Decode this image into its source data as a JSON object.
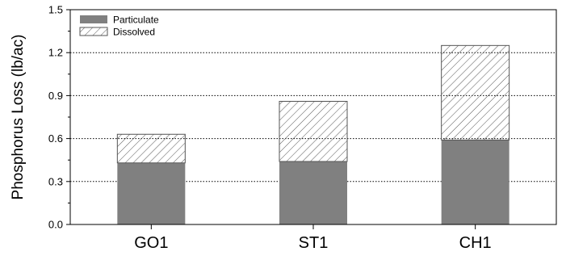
{
  "chart_data": {
    "type": "bar",
    "stacked": true,
    "categories": [
      "GO1",
      "ST1",
      "CH1"
    ],
    "series": [
      {
        "name": "Particulate",
        "values": [
          0.43,
          0.44,
          0.59
        ],
        "color": "#808080",
        "fill": "solid"
      },
      {
        "name": "Dissolved",
        "values": [
          0.2,
          0.42,
          0.66
        ],
        "color": "#ffffff",
        "fill": "diagonal-hatch"
      }
    ],
    "title": "",
    "xlabel": "",
    "ylabel": "Phosphorus Loss (lb/ac)",
    "ylim": [
      0,
      1.5
    ],
    "yticks": [
      "0.0",
      "0.3",
      "0.6",
      "0.9",
      "1.2",
      "1.5"
    ],
    "grid": {
      "y": true,
      "style": "dotted",
      "major_every": 0.3
    },
    "legend": {
      "position": "top-left"
    }
  }
}
